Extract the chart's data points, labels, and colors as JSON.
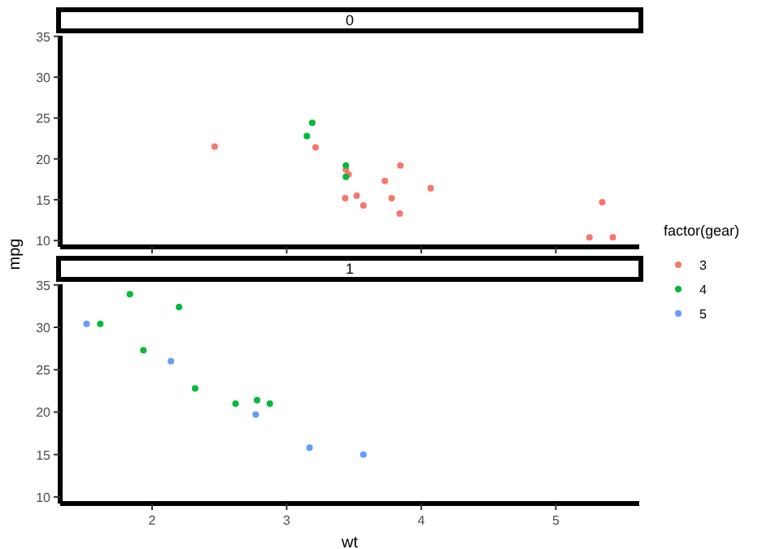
{
  "chart_data": [
    {
      "type": "scatter",
      "title": "0",
      "ylabel": "mpg",
      "xlim": [
        1.317,
        5.62
      ],
      "ylim": [
        9.225,
        35.075
      ],
      "xticks": [
        2,
        3,
        4,
        5
      ],
      "yticks": [
        10,
        15,
        20,
        25,
        30,
        35
      ],
      "tick_labels": "y",
      "marker": "circle",
      "grid": false,
      "legend": "right",
      "series": [
        {
          "name": "3",
          "color": "#f8766d",
          "x": [
            3.215,
            3.44,
            3.46,
            3.57,
            4.07,
            3.73,
            3.78,
            5.25,
            5.424,
            5.345,
            2.465,
            3.52,
            3.435,
            3.84,
            3.845
          ],
          "values": [
            21.4,
            18.7,
            18.1,
            14.3,
            16.4,
            17.3,
            15.2,
            10.4,
            10.4,
            14.7,
            21.5,
            15.5,
            15.2,
            13.3,
            19.2
          ]
        },
        {
          "name": "4",
          "color": "#00ba38",
          "x": [
            3.19,
            3.15,
            3.44,
            3.44
          ],
          "values": [
            24.4,
            22.8,
            19.2,
            17.8
          ]
        }
      ]
    },
    {
      "type": "scatter",
      "title": "1",
      "xlabel": "wt",
      "xlim": [
        1.317,
        5.62
      ],
      "ylim": [
        9.225,
        35.075
      ],
      "xticks": [
        2,
        3,
        4,
        5
      ],
      "yticks": [
        10,
        15,
        20,
        25,
        30,
        35
      ],
      "marker": "circle",
      "grid": false,
      "legend": "right",
      "legend_title": "factor(gear)",
      "series": [
        {
          "name": "4",
          "color": "#00ba38",
          "x": [
            2.62,
            2.875,
            2.32,
            2.2,
            1.615,
            1.835,
            1.935,
            2.78
          ],
          "values": [
            21,
            21,
            22.8,
            32.4,
            30.4,
            33.9,
            27.3,
            21.4
          ]
        },
        {
          "name": "5",
          "color": "#619cff",
          "x": [
            2.14,
            1.513,
            3.17,
            2.77,
            3.57
          ],
          "values": [
            26,
            30.4,
            15.8,
            19.7,
            15
          ]
        }
      ]
    }
  ]
}
